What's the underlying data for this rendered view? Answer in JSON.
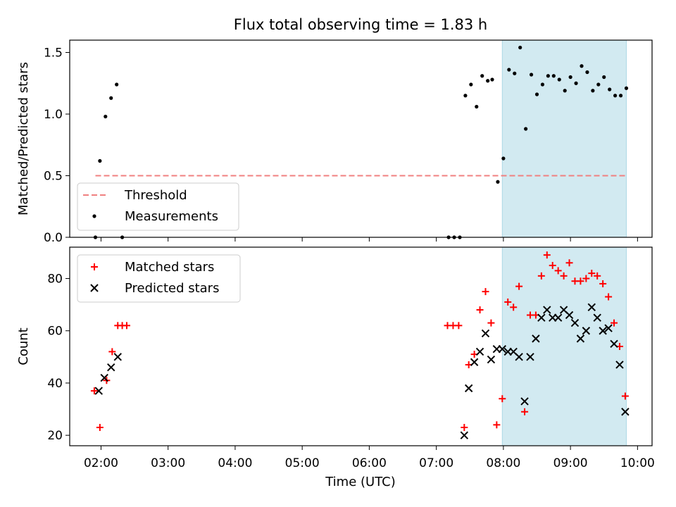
{
  "figure": {
    "title": "Flux total observing time = 1.83 h",
    "xlabel": "Time (UTC)",
    "x_ticks": [
      "02:00",
      "03:00",
      "04:00",
      "05:00",
      "06:00",
      "07:00",
      "08:00",
      "09:00",
      "10:00"
    ]
  },
  "colors": {
    "threshold": "#f08080",
    "measurements": "#000000",
    "matched": "#ff0000",
    "predicted": "#000000",
    "highlight": "#add8e6"
  },
  "chart_data": [
    {
      "type": "scatter",
      "ylabel": "Matched/Predicted stars",
      "xlim": [
        "01:32",
        "10:13"
      ],
      "ylim": [
        0,
        1.6
      ],
      "y_ticks": [
        "0.0",
        "0.5",
        "1.0",
        "1.5"
      ],
      "highlight_span": [
        "07:59",
        "09:50"
      ],
      "legend": {
        "loc": "lower left",
        "entries": [
          "Threshold",
          "Measurements"
        ]
      },
      "threshold": {
        "name": "Threshold",
        "value": 0.5,
        "x_range": [
          "01:55",
          "09:50"
        ]
      },
      "series": [
        {
          "name": "Measurements",
          "marker": "dot",
          "x": [
            "01:55",
            "01:59",
            "02:04",
            "02:09",
            "02:14",
            "02:19",
            "07:11",
            "07:16",
            "07:21",
            "07:26",
            "07:31",
            "07:36",
            "07:41",
            "07:46",
            "07:50",
            "07:55",
            "08:00",
            "08:05",
            "08:10",
            "08:15",
            "08:20",
            "08:25",
            "08:30",
            "08:35",
            "08:40",
            "08:45",
            "08:50",
            "08:55",
            "09:00",
            "09:05",
            "09:10",
            "09:15",
            "09:20",
            "09:25",
            "09:30",
            "09:35",
            "09:40",
            "09:45",
            "09:50"
          ],
          "y": [
            0.0,
            0.62,
            0.98,
            1.13,
            1.24,
            0.0,
            0.0,
            0.0,
            0.0,
            1.15,
            1.24,
            1.06,
            1.31,
            1.27,
            1.28,
            0.45,
            0.64,
            1.36,
            1.33,
            1.54,
            0.88,
            1.32,
            1.16,
            1.24,
            1.31,
            1.31,
            1.28,
            1.19,
            1.3,
            1.25,
            1.39,
            1.34,
            1.19,
            1.24,
            1.3,
            1.2,
            1.15,
            1.15,
            1.21
          ]
        }
      ]
    },
    {
      "type": "scatter",
      "ylabel": "Count",
      "xlabel": "Time (UTC)",
      "xlim": [
        "01:32",
        "10:13"
      ],
      "ylim": [
        16,
        92
      ],
      "y_ticks": [
        "20",
        "40",
        "60",
        "80"
      ],
      "highlight_span": [
        "07:59",
        "09:50"
      ],
      "legend": {
        "loc": "upper left",
        "entries": [
          "Matched stars",
          "Predicted stars"
        ]
      },
      "series": [
        {
          "name": "Matched stars",
          "marker": "plus",
          "x": [
            "01:54",
            "01:59",
            "02:05",
            "02:10",
            "02:15",
            "02:19",
            "02:23",
            "07:10",
            "07:15",
            "07:20",
            "07:25",
            "07:29",
            "07:34",
            "07:39",
            "07:44",
            "07:49",
            "07:54",
            "07:59",
            "08:04",
            "08:09",
            "08:14",
            "08:19",
            "08:24",
            "08:29",
            "08:34",
            "08:39",
            "08:44",
            "08:49",
            "08:54",
            "08:59",
            "09:04",
            "09:09",
            "09:14",
            "09:19",
            "09:24",
            "09:29",
            "09:34",
            "09:39",
            "09:44",
            "09:49"
          ],
          "y": [
            37,
            23,
            41,
            52,
            62,
            62,
            62,
            62,
            62,
            62,
            23,
            47,
            51,
            68,
            75,
            63,
            24,
            34,
            71,
            69,
            77,
            29,
            66,
            66,
            81,
            89,
            85,
            83,
            81,
            86,
            79,
            79,
            80,
            82,
            81,
            78,
            73,
            63,
            54,
            35
          ]
        },
        {
          "name": "Predicted stars",
          "marker": "x",
          "x": [
            "01:58",
            "02:03",
            "02:09",
            "02:15",
            "07:25",
            "07:29",
            "07:34",
            "07:39",
            "07:44",
            "07:49",
            "07:54",
            "07:59",
            "08:04",
            "08:09",
            "08:14",
            "08:19",
            "08:24",
            "08:29",
            "08:34",
            "08:39",
            "08:44",
            "08:49",
            "08:54",
            "08:59",
            "09:04",
            "09:09",
            "09:14",
            "09:19",
            "09:24",
            "09:29",
            "09:34",
            "09:39",
            "09:44",
            "09:49"
          ],
          "y": [
            37,
            42,
            46,
            50,
            20,
            38,
            48,
            52,
            59,
            49,
            53,
            53,
            52,
            52,
            50,
            33,
            50,
            57,
            65,
            68,
            65,
            65,
            68,
            66,
            63,
            57,
            60,
            69,
            65,
            60,
            61,
            55,
            47,
            29
          ]
        }
      ]
    }
  ]
}
